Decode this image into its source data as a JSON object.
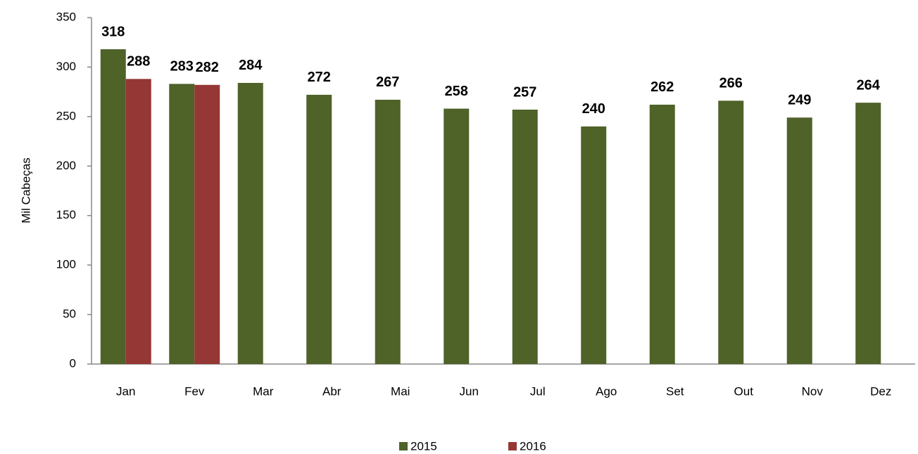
{
  "chart_data": {
    "type": "bar",
    "y_label": "Mil Cabeças",
    "categories": [
      "Jan",
      "Fev",
      "Mar",
      "Abr",
      "Mai",
      "Jun",
      "Jul",
      "Ago",
      "Set",
      "Out",
      "Nov",
      "Dez"
    ],
    "series": [
      {
        "name": "2015",
        "color": "#4f6228",
        "values": [
          318,
          283,
          284,
          272,
          267,
          258,
          257,
          240,
          262,
          266,
          249,
          264
        ]
      },
      {
        "name": "2016",
        "color": "#953735",
        "values": [
          288,
          282,
          null,
          null,
          null,
          null,
          null,
          null,
          null,
          null,
          null,
          null
        ]
      }
    ],
    "ylim": [
      0,
      350
    ],
    "yticks": [
      0,
      50,
      100,
      150,
      200,
      250,
      300,
      350
    ],
    "grid": false,
    "legend": "bottom"
  }
}
